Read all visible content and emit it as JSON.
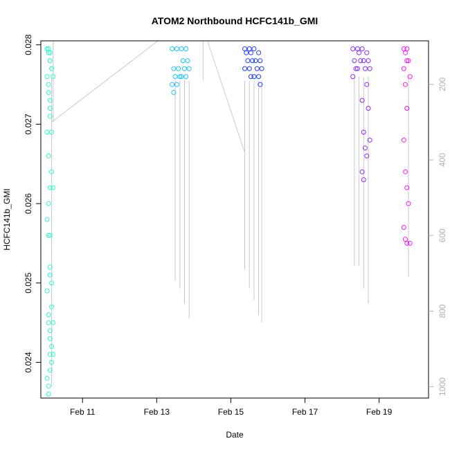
{
  "chart_data": {
    "type": "scatter",
    "title": "ATOM2 Northbound HCFC141b_GMI",
    "xlabel": "Date",
    "ylabel": "HCFC141b_GMI",
    "x_ticks": [
      "Feb 11",
      "Feb 13",
      "Feb 15",
      "Feb 17",
      "Feb 19"
    ],
    "y_ticks": [
      "0.024",
      "0.025",
      "0.026",
      "0.027",
      "0.028"
    ],
    "y2_ticks": [
      "200",
      "400",
      "600",
      "800",
      "1000"
    ],
    "xlim": [
      "2017-02-09T21:00",
      "2017-02-20T08:00"
    ],
    "ylim": [
      0.02355,
      0.02805
    ],
    "y2lim": [
      1030,
      85
    ],
    "grid": false,
    "secondary_axis": "pressure (hPa), drawn as grey flight-track lines",
    "series": [
      {
        "color": "#22ffc8",
        "points": [
          {
            "x": "2017-02-10T02:00",
            "y": [
              0.02795,
              0.0279,
              0.0278,
              0.0276,
              0.0274,
              0.0272,
              0.0269,
              0.0266,
              0.0262,
              0.0258,
              0.0256,
              0.0252,
              0.0249,
              0.0245,
              0.0241,
              0.0238,
              0.0236
            ]
          },
          {
            "x": "2017-02-10T03:00",
            "y": [
              0.02795,
              0.0278,
              0.0277,
              0.0275,
              0.0271,
              0.0264,
              0.026,
              0.0256,
              0.025,
              0.0246,
              0.0243,
              0.024,
              0.0237
            ]
          },
          {
            "x": "2017-02-10T04:00",
            "y": [
              0.0279,
              0.0277,
              0.0276,
              0.0273,
              0.0269,
              0.0262,
              0.0251,
              0.0247,
              0.0245,
              0.0244,
              0.0242,
              0.0241,
              0.0239
            ]
          }
        ]
      },
      {
        "color": "#14c8ff",
        "points": [
          {
            "x": "2017-02-13T11:00",
            "y": [
              0.02795,
              0.0277,
              0.0276,
              0.0275,
              0.0274
            ]
          },
          {
            "x": "2017-02-13T14:00",
            "y": [
              0.02795,
              0.0277,
              0.0276,
              0.0275
            ]
          },
          {
            "x": "2017-02-13T17:00",
            "y": [
              0.02795,
              0.0278,
              0.0277,
              0.0276
            ]
          },
          {
            "x": "2017-02-13T20:00",
            "y": [
              0.02795,
              0.0278,
              0.0277,
              0.0276
            ]
          }
        ]
      },
      {
        "color": "#1e3cff",
        "points": [
          {
            "x": "2017-02-15T10:00",
            "y": [
              0.02795,
              0.0279,
              0.0278,
              0.0277
            ]
          },
          {
            "x": "2017-02-15T13:00",
            "y": [
              0.02795,
              0.0279,
              0.0278,
              0.0277,
              0.0276
            ]
          },
          {
            "x": "2017-02-15T16:00",
            "y": [
              0.02795,
              0.0278,
              0.0277,
              0.0276
            ]
          },
          {
            "x": "2017-02-15T19:00",
            "y": [
              0.0279,
              0.0278,
              0.0277,
              0.0276,
              0.0275
            ]
          }
        ]
      },
      {
        "color": "#8c28ff",
        "points": [
          {
            "x": "2017-02-18T08:00",
            "y": [
              0.02795,
              0.0278,
              0.0277,
              0.0276
            ]
          },
          {
            "x": "2017-02-18T11:00",
            "y": [
              0.02795,
              0.0279,
              0.0278,
              0.0277
            ]
          },
          {
            "x": "2017-02-18T14:00",
            "y": [
              0.02795,
              0.0278,
              0.0277,
              0.0273,
              0.0269,
              0.0267,
              0.0264,
              0.0263
            ]
          },
          {
            "x": "2017-02-18T17:00",
            "y": [
              0.0279,
              0.0278,
              0.0277,
              0.0275,
              0.0272,
              0.0268,
              0.0266
            ]
          }
        ]
      },
      {
        "color": "#ff14ff",
        "points": [
          {
            "x": "2017-02-19T17:00",
            "y": [
              0.02795,
              0.0279,
              0.0278,
              0.0277,
              0.0275,
              0.0272,
              0.0268,
              0.0264,
              0.0262,
              0.0257,
              0.02555,
              0.0255
            ]
          },
          {
            "x": "2017-02-19T19:00",
            "y": [
              0.02795,
              0.0278,
              0.0276,
              0.0272,
              0.026,
              0.0255
            ]
          }
        ]
      }
    ],
    "pressure_track": [
      {
        "x": "2017-02-10T04:00",
        "p": [
          180,
          400,
          600,
          790,
          900,
          1000
        ]
      },
      {
        "x": "2017-02-10T05:00",
        "p": [
          300,
          200,
          50
        ]
      },
      {
        "x": "2017-02-13T12:00",
        "p": [
          190,
          720
        ]
      },
      {
        "x": "2017-02-13T15:00",
        "p": [
          190,
          740
        ]
      },
      {
        "x": "2017-02-13T18:00",
        "p": [
          190,
          780
        ]
      },
      {
        "x": "2017-02-13T21:00",
        "p": [
          190,
          820
        ]
      },
      {
        "x": "2017-02-14T06:00",
        "p": [
          50,
          190
        ]
      },
      {
        "x": "2017-02-15T09:00",
        "p": [
          190,
          690
        ]
      },
      {
        "x": "2017-02-15T12:00",
        "p": [
          190,
          740
        ]
      },
      {
        "x": "2017-02-15T15:00",
        "p": [
          190,
          770
        ]
      },
      {
        "x": "2017-02-15T18:00",
        "p": [
          190,
          810
        ]
      },
      {
        "x": "2017-02-15T20:00",
        "p": [
          190,
          830
        ]
      },
      {
        "x": "2017-02-18T08:00",
        "p": [
          180,
          680
        ]
      },
      {
        "x": "2017-02-18T11:00",
        "p": [
          180,
          680
        ]
      },
      {
        "x": "2017-02-18T14:00",
        "p": [
          180,
          740
        ]
      },
      {
        "x": "2017-02-18T17:00",
        "p": [
          180,
          780
        ]
      },
      {
        "x": "2017-02-19T19:00",
        "p": [
          180,
          710
        ]
      }
    ]
  }
}
